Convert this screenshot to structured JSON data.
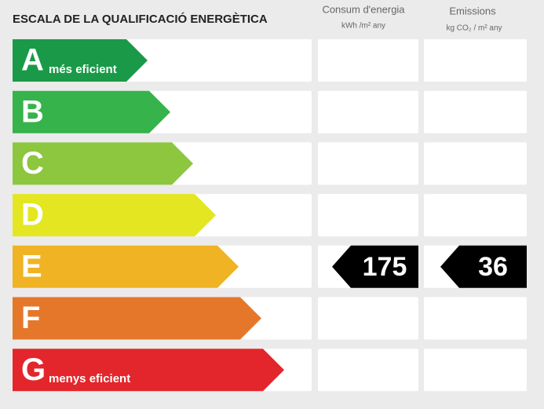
{
  "title": "ESCALA DE LA QUALIFICACIÓ ENERGÈTICA",
  "columns": [
    {
      "title": "Consum d'energia",
      "unit": "kWh /m² any"
    },
    {
      "title": "Emissions",
      "unit": "kg CO₂ / m² any"
    }
  ],
  "ratings": [
    {
      "letter": "A",
      "label": "més eficient",
      "color": "#1a9a48",
      "consumption": null,
      "emissions": null
    },
    {
      "letter": "B",
      "color": "#36b34a",
      "consumption": null,
      "emissions": null
    },
    {
      "letter": "C",
      "color": "#8dc63f",
      "consumption": null,
      "emissions": null
    },
    {
      "letter": "D",
      "color": "#e3e620",
      "consumption": null,
      "emissions": null
    },
    {
      "letter": "E",
      "color": "#f0b323",
      "consumption": 175,
      "emissions": 36
    },
    {
      "letter": "F",
      "color": "#e5772a",
      "consumption": null,
      "emissions": null
    },
    {
      "letter": "G",
      "label": "menys eficient",
      "color": "#e3262b",
      "consumption": null,
      "emissions": null
    }
  ]
}
